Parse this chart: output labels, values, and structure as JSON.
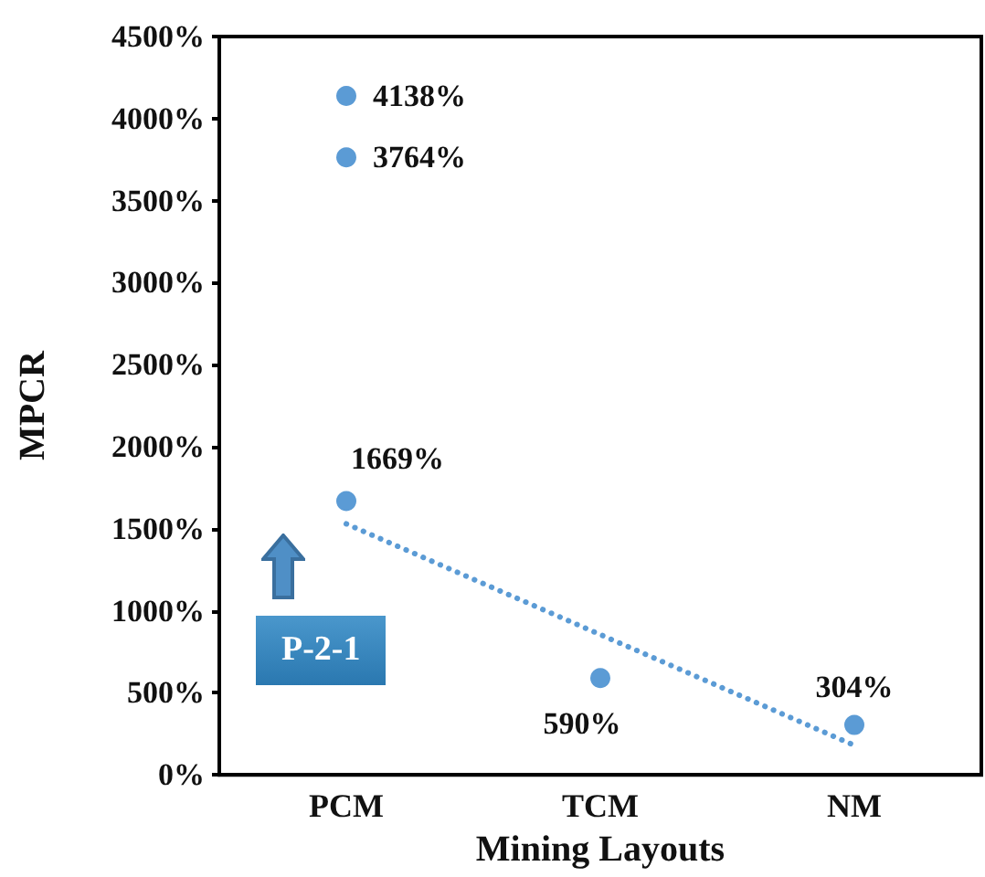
{
  "chart_data": {
    "type": "scatter",
    "xlabel": "Mining Layouts",
    "ylabel": "MPCR",
    "categories": [
      "PCM",
      "TCM",
      "NM"
    ],
    "series": [
      {
        "color": "#5b9bd5",
        "x": [
          "PCM",
          "PCM",
          "PCM",
          "TCM",
          "NM"
        ],
        "values": [
          4138,
          3764,
          1669,
          590,
          304
        ],
        "value_labels": [
          "4138%",
          "3764%",
          "1669%",
          "590%",
          "304%"
        ]
      },
      {
        "type": "line",
        "color": "#5b9bd5",
        "line_style": "dotted",
        "marker": "none",
        "x": [
          "PCM",
          "NM"
        ],
        "values": [
          1530,
          180
        ]
      }
    ],
    "ylim": [
      0,
      4500
    ],
    "yticks": [
      {
        "value": 0,
        "label": "0%"
      },
      {
        "value": 500,
        "label": "500%"
      },
      {
        "value": 1000,
        "label": "1000%"
      },
      {
        "value": 1500,
        "label": "1500%"
      },
      {
        "value": 2000,
        "label": "2000%"
      },
      {
        "value": 2500,
        "label": "2500%"
      },
      {
        "value": 3000,
        "label": "3000%"
      },
      {
        "value": 3500,
        "label": "3500%"
      },
      {
        "value": 4000,
        "label": "4000%"
      },
      {
        "value": 4500,
        "label": "4500%"
      }
    ],
    "annotations": [
      "P-2-1"
    ],
    "grid": false,
    "marker": "circle"
  }
}
